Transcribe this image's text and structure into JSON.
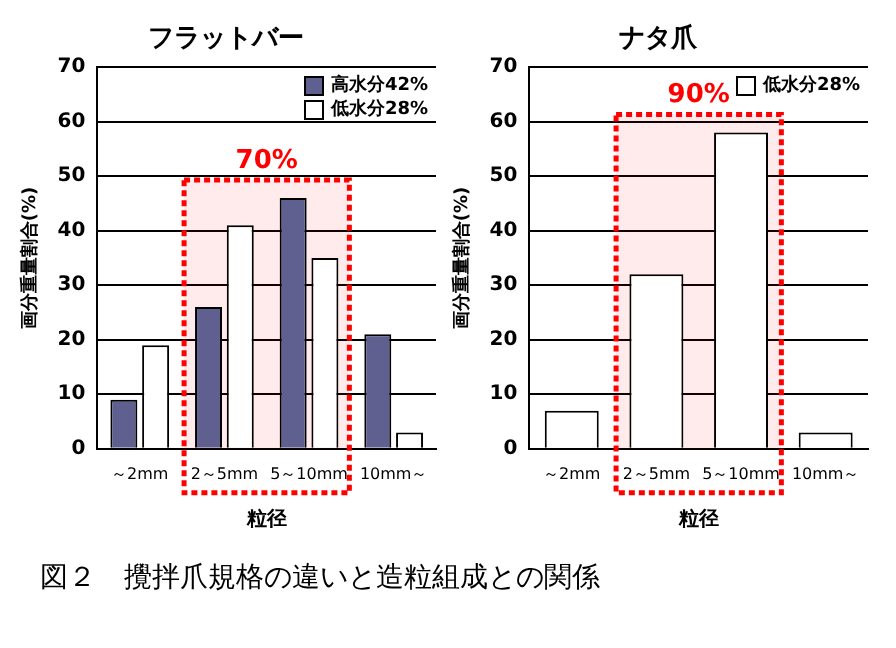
{
  "chart_data": [
    {
      "type": "bar",
      "title": "フラットバー",
      "xlabel": "粒径",
      "ylabel": "画分重量割合(%)",
      "categories": [
        "～2mm",
        "2～5mm",
        "5～10mm",
        "10mm～"
      ],
      "series": [
        {
          "name": "高水分42%",
          "color": "#606090",
          "values": [
            9,
            26,
            46,
            21
          ]
        },
        {
          "name": "低水分28%",
          "color": "#ffffff",
          "values": [
            19,
            41,
            35,
            3
          ]
        }
      ],
      "ylim": [
        0,
        70
      ],
      "yticks": [
        0,
        10,
        20,
        30,
        40,
        50,
        60,
        70
      ],
      "grid": "y",
      "legend": "top right",
      "bands": [
        {
          "axis": "x",
          "from": "2～5mm",
          "to": "5～10mm",
          "label": "70%",
          "color": "#ff0000"
        }
      ],
      "annotations": [
        "図２　攪拌爪規格の違いと造粒組成との関係"
      ]
    },
    {
      "type": "bar",
      "title": "ナタ爪",
      "xlabel": "粒径",
      "ylabel": "画分重量割合(%)",
      "categories": [
        "～2mm",
        "2～5mm",
        "5～10mm",
        "10mm～"
      ],
      "series": [
        {
          "name": "低水分28%",
          "color": "#ffffff",
          "values": [
            7,
            32,
            58,
            3
          ]
        }
      ],
      "ylim": [
        0,
        70
      ],
      "yticks": [
        0,
        10,
        20,
        30,
        40,
        50,
        60,
        70
      ],
      "grid": "y",
      "legend": "top right",
      "bands": [
        {
          "axis": "x",
          "from": "2～5mm",
          "to": "5～10mm",
          "label": "90%",
          "color": "#ff0000"
        }
      ]
    }
  ]
}
